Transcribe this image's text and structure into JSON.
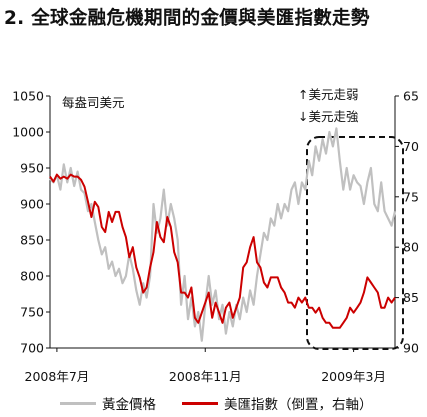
{
  "title": "2. 全球金融危機期間的金價與美匯指數走勢",
  "chart_data": {
    "type": "line",
    "title": "2. 全球金融危機期間的金價與美匯指數走勢",
    "ylabel": "每盎司美元",
    "y2label_up": "↑美元走弱",
    "y2label_down": "↓美元走強",
    "ylim": [
      700,
      1050
    ],
    "yticks": [
      700,
      750,
      800,
      850,
      900,
      950,
      1000,
      1050
    ],
    "y2lim": [
      90,
      65
    ],
    "y2ticks": [
      65,
      70,
      75,
      80,
      85,
      90
    ],
    "y2_inverted": true,
    "x_ticks": [
      "2008年7月",
      "2008年11月",
      "2009年3月"
    ],
    "x_tick_index": [
      2,
      45,
      88
    ],
    "n_points": 101,
    "series": [
      {
        "name": "黃金價格",
        "axis": "left",
        "color": "#c0c0c0",
        "values": [
          935,
          930,
          940,
          920,
          955,
          930,
          950,
          925,
          945,
          920,
          915,
          890,
          900,
          875,
          850,
          830,
          840,
          810,
          820,
          800,
          810,
          790,
          800,
          830,
          810,
          780,
          760,
          790,
          770,
          800,
          900,
          860,
          880,
          920,
          870,
          900,
          880,
          850,
          760,
          800,
          740,
          770,
          730,
          750,
          710,
          760,
          800,
          760,
          780,
          740,
          760,
          720,
          750,
          730,
          760,
          740,
          770,
          750,
          780,
          760,
          800,
          830,
          860,
          850,
          880,
          870,
          900,
          880,
          900,
          890,
          920,
          930,
          900,
          930,
          920,
          960,
          940,
          980,
          960,
          990,
          970,
          1000,
          980,
          1005,
          960,
          920,
          950,
          920,
          940,
          930,
          925,
          900,
          930,
          950,
          900,
          890,
          930,
          890,
          880,
          870,
          890
        ]
      },
      {
        "name": "美匯指數（倒置，右軸）",
        "axis": "right",
        "color": "#cc0000",
        "values": [
          73.0,
          73.5,
          72.8,
          73.2,
          73.0,
          73.2,
          72.8,
          73.0,
          73.0,
          73.3,
          74.0,
          75.5,
          77.0,
          75.5,
          76.0,
          78.0,
          78.5,
          76.5,
          77.5,
          76.5,
          76.5,
          78.0,
          79.0,
          81.0,
          80.0,
          82.0,
          83.0,
          84.5,
          84.0,
          82.0,
          80.5,
          77.5,
          79.0,
          79.5,
          77.0,
          78.0,
          80.5,
          81.5,
          84.5,
          84.5,
          85.0,
          84.0,
          87.0,
          87.5,
          86.5,
          85.5,
          84.5,
          87.0,
          85.5,
          86.5,
          87.5,
          86.0,
          85.5,
          87.0,
          86.0,
          85.0,
          82.0,
          81.5,
          80.0,
          79.0,
          81.5,
          82.0,
          83.5,
          84.0,
          83.0,
          83.0,
          83.0,
          84.0,
          84.5,
          85.5,
          85.5,
          86.0,
          85.0,
          85.5,
          85.0,
          86.0,
          86.0,
          86.5,
          86.0,
          87.0,
          87.5,
          87.5,
          88.0,
          88.0,
          88.0,
          87.5,
          87.0,
          86.0,
          86.5,
          86.0,
          85.5,
          84.5,
          83.0,
          83.5,
          84.0,
          84.5,
          86.0,
          86.0,
          85.0,
          85.5,
          85.0
        ]
      }
    ],
    "annotation_box": "dashed"
  }
}
